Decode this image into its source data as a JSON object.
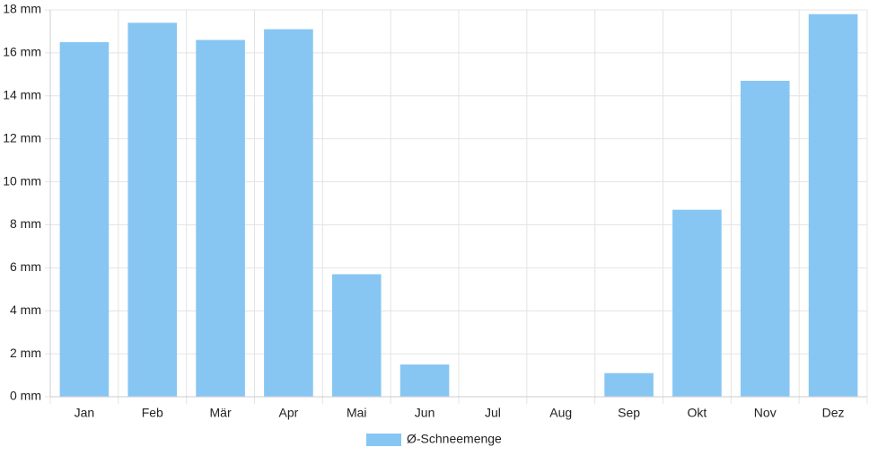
{
  "chart_data": {
    "type": "bar",
    "categories": [
      "Jan",
      "Feb",
      "Mär",
      "Apr",
      "Mai",
      "Jun",
      "Jul",
      "Aug",
      "Sep",
      "Okt",
      "Nov",
      "Dez"
    ],
    "series": [
      {
        "name": "Ø-Schneemenge",
        "color": "#87c6f2",
        "values": [
          16.5,
          17.4,
          16.6,
          17.1,
          5.7,
          1.5,
          0,
          0,
          1.1,
          8.7,
          14.7,
          17.8
        ]
      }
    ],
    "ylim": [
      0,
      18
    ],
    "yticks": [
      {
        "value": 0,
        "label": "0 mm"
      },
      {
        "value": 2,
        "label": "2 mm"
      },
      {
        "value": 4,
        "label": "4 mm"
      },
      {
        "value": 6,
        "label": "6 mm"
      },
      {
        "value": 8,
        "label": "8 mm"
      },
      {
        "value": 10,
        "label": "10 mm"
      },
      {
        "value": 12,
        "label": "12 mm"
      },
      {
        "value": 14,
        "label": "14 mm"
      },
      {
        "value": 16,
        "label": "16 mm"
      },
      {
        "value": 18,
        "label": "18 mm"
      }
    ],
    "grid": true,
    "legend": "bottom"
  }
}
